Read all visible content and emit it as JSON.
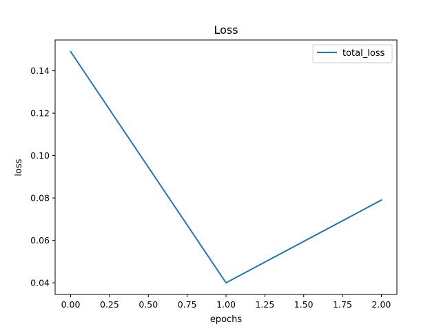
{
  "chart_data": {
    "type": "line",
    "title": "Loss",
    "xlabel": "epochs",
    "ylabel": "loss",
    "xlim": [
      -0.1,
      2.1
    ],
    "ylim": [
      0.0345,
      0.1545
    ],
    "xticks": [
      0.0,
      0.25,
      0.5,
      0.75,
      1.0,
      1.25,
      1.5,
      1.75,
      2.0
    ],
    "xtick_labels": [
      "0.00",
      "0.25",
      "0.50",
      "0.75",
      "1.00",
      "1.25",
      "1.50",
      "1.75",
      "2.00"
    ],
    "yticks": [
      0.04,
      0.06,
      0.08,
      0.1,
      0.12,
      0.14
    ],
    "ytick_labels": [
      "0.04",
      "0.06",
      "0.08",
      "0.10",
      "0.12",
      "0.14"
    ],
    "grid": false,
    "legend_position": "top-right",
    "series": [
      {
        "name": "total_loss",
        "color": "#1f77b4",
        "x": [
          0,
          1,
          2
        ],
        "y": [
          0.149,
          0.04,
          0.079
        ]
      }
    ]
  }
}
